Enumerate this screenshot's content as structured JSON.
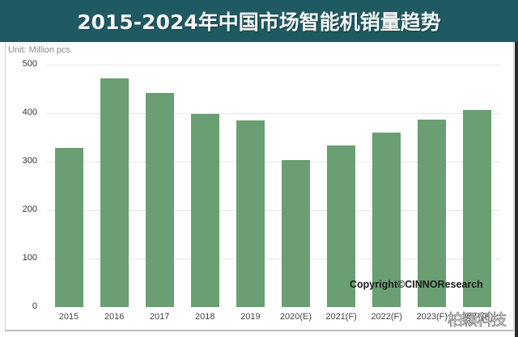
{
  "header": {
    "title": "2015-2024年中国市场智能机销量趋势"
  },
  "unit_label": "Unit:  Million pcs",
  "copyright": "Copyright©CINNOResearch",
  "watermark": "柏颖科技",
  "colors": {
    "header_bg": "#1f5a63",
    "bar": "#6a9f74",
    "grid": "#e6e6e6"
  },
  "y_ticks": [
    "500",
    "400",
    "300",
    "200",
    "100",
    "0"
  ],
  "x_labels": [
    "2015",
    "2016",
    "2017",
    "2018",
    "2019",
    "2020(E)",
    "2021(F)",
    "2022(F)",
    "2023(F)",
    "2024(F)"
  ],
  "chart_data": {
    "type": "bar",
    "title": "2015-2024年中国市场智能机销量趋势",
    "xlabel": "",
    "ylabel": "Unit: Million pcs",
    "categories": [
      "2015",
      "2016",
      "2017",
      "2018",
      "2019",
      "2020(E)",
      "2021(F)",
      "2022(F)",
      "2023(F)",
      "2024(F)"
    ],
    "values": [
      328,
      472,
      442,
      398,
      385,
      303,
      333,
      360,
      386,
      407
    ],
    "ylim": [
      0,
      500
    ],
    "yticks": [
      0,
      100,
      200,
      300,
      400,
      500
    ],
    "grid": true,
    "legend": "none",
    "annotations": [
      "Copyright©CINNOResearch"
    ]
  }
}
